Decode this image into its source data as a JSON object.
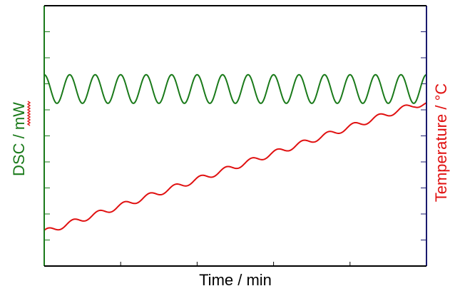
{
  "chart_data": {
    "type": "line",
    "title": "",
    "xlabel": "Time / min",
    "ylabel_left": "DSC / ",
    "ylabel_left_unit": "mW",
    "ylabel_right": "Temperature / °C",
    "grid": false,
    "legend": "none",
    "xlim": [
      0,
      1
    ],
    "ylim": [
      0,
      1
    ],
    "x_ticks": 5,
    "y_ticks_left": 10,
    "y_ticks_right": 10,
    "series": [
      {
        "axis": "left",
        "color": "#1a7a1a",
        "shape": "sinusoid",
        "baseline": 0.68,
        "amplitude": 0.055,
        "cycles": 15
      },
      {
        "axis": "right",
        "color": "#e01010",
        "shape": "modulated-ramp",
        "start": 0.13,
        "end": 0.62,
        "modulation": 0.008,
        "cycles": 15,
        "plateau_end": 0.97
      }
    ],
    "colors": {
      "axes_box": "#000000",
      "left_axis": "#1a7a1a",
      "right_axis": "#1a1a6e"
    }
  }
}
